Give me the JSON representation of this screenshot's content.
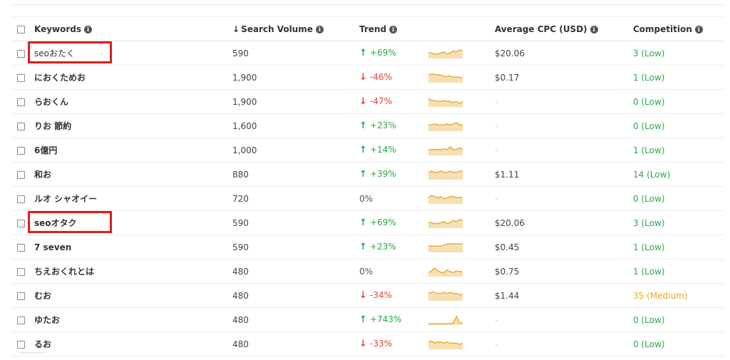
{
  "headers": {
    "keywords": "Keywords",
    "sort_arrow": "↓",
    "volume": "Search Volume",
    "trend": "Trend",
    "cpc": "Average CPC (USD)",
    "competition": "Competition",
    "info_glyph": "i"
  },
  "colors": {
    "up": "#27a745",
    "down": "#e2453c",
    "low": "#2fa84f",
    "medium": "#e8a623",
    "spark_line": "#eba32a",
    "spark_fill": "#f6dfb3",
    "highlight": "#e21b1b"
  },
  "rows": [
    {
      "keyword": "seoおたく",
      "volume": "590",
      "dir": "up",
      "trend": "+69%",
      "cpc": "$20.06",
      "comp": "3 (Low)",
      "level": "low",
      "spark": [
        4,
        4,
        3,
        3,
        4,
        5,
        3,
        4,
        6,
        5,
        7,
        6
      ],
      "highlighted": true,
      "bold": false
    },
    {
      "keyword": "におくためお",
      "volume": "1,900",
      "dir": "down",
      "trend": "-46%",
      "cpc": "$0.17",
      "comp": "1 (Low)",
      "level": "low",
      "spark": [
        6,
        7,
        7,
        6,
        6,
        5,
        5,
        5,
        4,
        4,
        4,
        3
      ],
      "highlighted": false,
      "bold": true
    },
    {
      "keyword": "らおくん",
      "volume": "1,900",
      "dir": "down",
      "trend": "-47%",
      "cpc": "-",
      "comp": "0 (Low)",
      "level": "low",
      "spark": [
        7,
        5,
        5,
        4,
        4,
        5,
        4,
        4,
        3,
        4,
        2,
        4
      ],
      "highlighted": false,
      "bold": true
    },
    {
      "keyword": "りお 節約",
      "volume": "1,600",
      "dir": "up",
      "trend": "+23%",
      "cpc": "-",
      "comp": "0 (Low)",
      "level": "low",
      "spark": [
        4,
        4,
        5,
        4,
        4,
        4,
        5,
        4,
        5,
        6,
        4,
        4
      ],
      "highlighted": false,
      "bold": true
    },
    {
      "keyword": "6億円",
      "volume": "1,000",
      "dir": "up",
      "trend": "+14%",
      "cpc": "-",
      "comp": "1 (Low)",
      "level": "low",
      "spark": [
        5,
        5,
        5,
        5,
        5,
        6,
        5,
        8,
        5,
        5,
        7,
        5
      ],
      "highlighted": false,
      "bold": true
    },
    {
      "keyword": "和お",
      "volume": "880",
      "dir": "up",
      "trend": "+39%",
      "cpc": "$1.11",
      "comp": "14 (Low)",
      "level": "low",
      "spark": [
        5,
        6,
        5,
        5,
        6,
        5,
        5,
        6,
        5,
        5,
        6,
        6
      ],
      "highlighted": false,
      "bold": true
    },
    {
      "keyword": "ルオ シャオイー",
      "volume": "720",
      "dir": "flat",
      "trend": "0%",
      "cpc": "-",
      "comp": "0 (Low)",
      "level": "low",
      "spark": [
        4,
        6,
        5,
        4,
        5,
        3,
        4,
        5,
        5,
        4,
        4,
        4
      ],
      "highlighted": false,
      "bold": true
    },
    {
      "keyword": "seoオタク",
      "volume": "590",
      "dir": "up",
      "trend": "+69%",
      "cpc": "$20.06",
      "comp": "3 (Low)",
      "level": "low",
      "spark": [
        4,
        4,
        3,
        3,
        4,
        5,
        3,
        4,
        6,
        5,
        7,
        6
      ],
      "highlighted": true,
      "bold": true
    },
    {
      "keyword": "7 seven",
      "volume": "590",
      "dir": "up",
      "trend": "+23%",
      "cpc": "$0.45",
      "comp": "1 (Low)",
      "level": "low",
      "spark": [
        4,
        4,
        4,
        4,
        4,
        5,
        6,
        6,
        6,
        6,
        6,
        6
      ],
      "highlighted": false,
      "bold": true
    },
    {
      "keyword": "ちえおくれとは",
      "volume": "480",
      "dir": "flat",
      "trend": "0%",
      "cpc": "$0.75",
      "comp": "1 (Low)",
      "level": "low",
      "spark": [
        3,
        5,
        8,
        5,
        3,
        3,
        6,
        4,
        3,
        5,
        4,
        4
      ],
      "highlighted": false,
      "bold": true
    },
    {
      "keyword": "むお",
      "volume": "480",
      "dir": "down",
      "trend": "-34%",
      "cpc": "$1.44",
      "comp": "35 (Medium)",
      "level": "medium",
      "spark": [
        5,
        6,
        6,
        5,
        5,
        6,
        5,
        6,
        5,
        5,
        4,
        4
      ],
      "highlighted": false,
      "bold": true
    },
    {
      "keyword": "ゆたお",
      "volume": "480",
      "dir": "up",
      "trend": "+743%",
      "cpc": "-",
      "comp": "0 (Low)",
      "level": "low",
      "spark": [
        0,
        0,
        0,
        0,
        0,
        0,
        0,
        0,
        1,
        9,
        1,
        1
      ],
      "highlighted": false,
      "bold": true
    },
    {
      "keyword": "るお",
      "volume": "480",
      "dir": "down",
      "trend": "-33%",
      "cpc": "-",
      "comp": "0 (Low)",
      "level": "low",
      "spark": [
        5,
        6,
        4,
        5,
        5,
        4,
        5,
        4,
        4,
        4,
        3,
        4
      ],
      "highlighted": false,
      "bold": true
    }
  ]
}
